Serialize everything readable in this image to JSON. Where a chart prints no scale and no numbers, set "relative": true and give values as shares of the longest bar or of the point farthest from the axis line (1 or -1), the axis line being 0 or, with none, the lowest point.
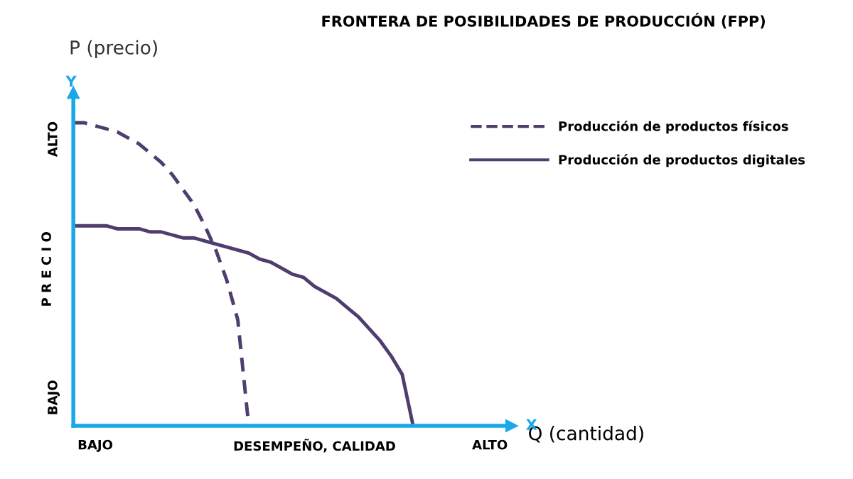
{
  "chart_data": {
    "type": "line",
    "title": "FRONTERA DE POSIBILIDADES DE PRODUCCIÓN (FPP)",
    "relative": true,
    "xlabel": "Q (cantidad)",
    "ylabel": "P R E C I O",
    "annotations": [
      "P (precio)",
      "Y",
      "X",
      "ALTO",
      "BAJO"
    ],
    "categories": [
      null,
      null,
      "BAJO",
      null,
      null,
      null,
      null,
      null,
      null,
      null,
      null,
      null,
      null,
      null,
      null,
      null,
      null,
      null,
      null,
      null,
      null,
      null,
      "DESEMPEÑO, CALIDAD",
      null,
      null,
      null,
      null,
      null,
      null,
      null,
      null,
      null,
      null,
      null,
      null,
      null,
      null,
      null,
      "ALTO",
      null,
      null
    ],
    "legend": "top right",
    "grid": false,
    "series": [
      {
        "name": "Producción de productos físicos",
        "color": "#4e3d6e",
        "line_style": "dashed",
        "values": [
          1,
          1,
          0.99,
          0.98,
          0.97,
          0.95,
          0.93,
          0.9,
          0.87,
          0.83,
          0.78,
          0.73,
          0.66,
          0.58,
          0.48,
          0.35,
          0,
          null,
          null,
          null,
          null,
          null,
          null,
          null,
          null,
          null,
          null,
          null,
          null,
          null,
          null,
          null,
          null,
          null,
          null,
          null,
          null,
          null,
          null,
          null,
          null
        ]
      },
      {
        "name": "Producción de productos digitales",
        "color": "#4e3d6e",
        "line_style": "solid",
        "values": [
          0.66,
          0.66,
          0.66,
          0.66,
          0.65,
          0.65,
          0.65,
          0.64,
          0.64,
          0.63,
          0.62,
          0.62,
          0.61,
          0.6,
          0.59,
          0.58,
          0.57,
          0.55,
          0.54,
          0.52,
          0.5,
          0.49,
          0.46,
          0.44,
          0.42,
          0.39,
          0.36,
          0.32,
          0.28,
          0.23,
          0.17,
          0,
          null,
          null,
          null,
          null,
          null,
          null,
          null,
          null,
          null
        ]
      }
    ]
  }
}
